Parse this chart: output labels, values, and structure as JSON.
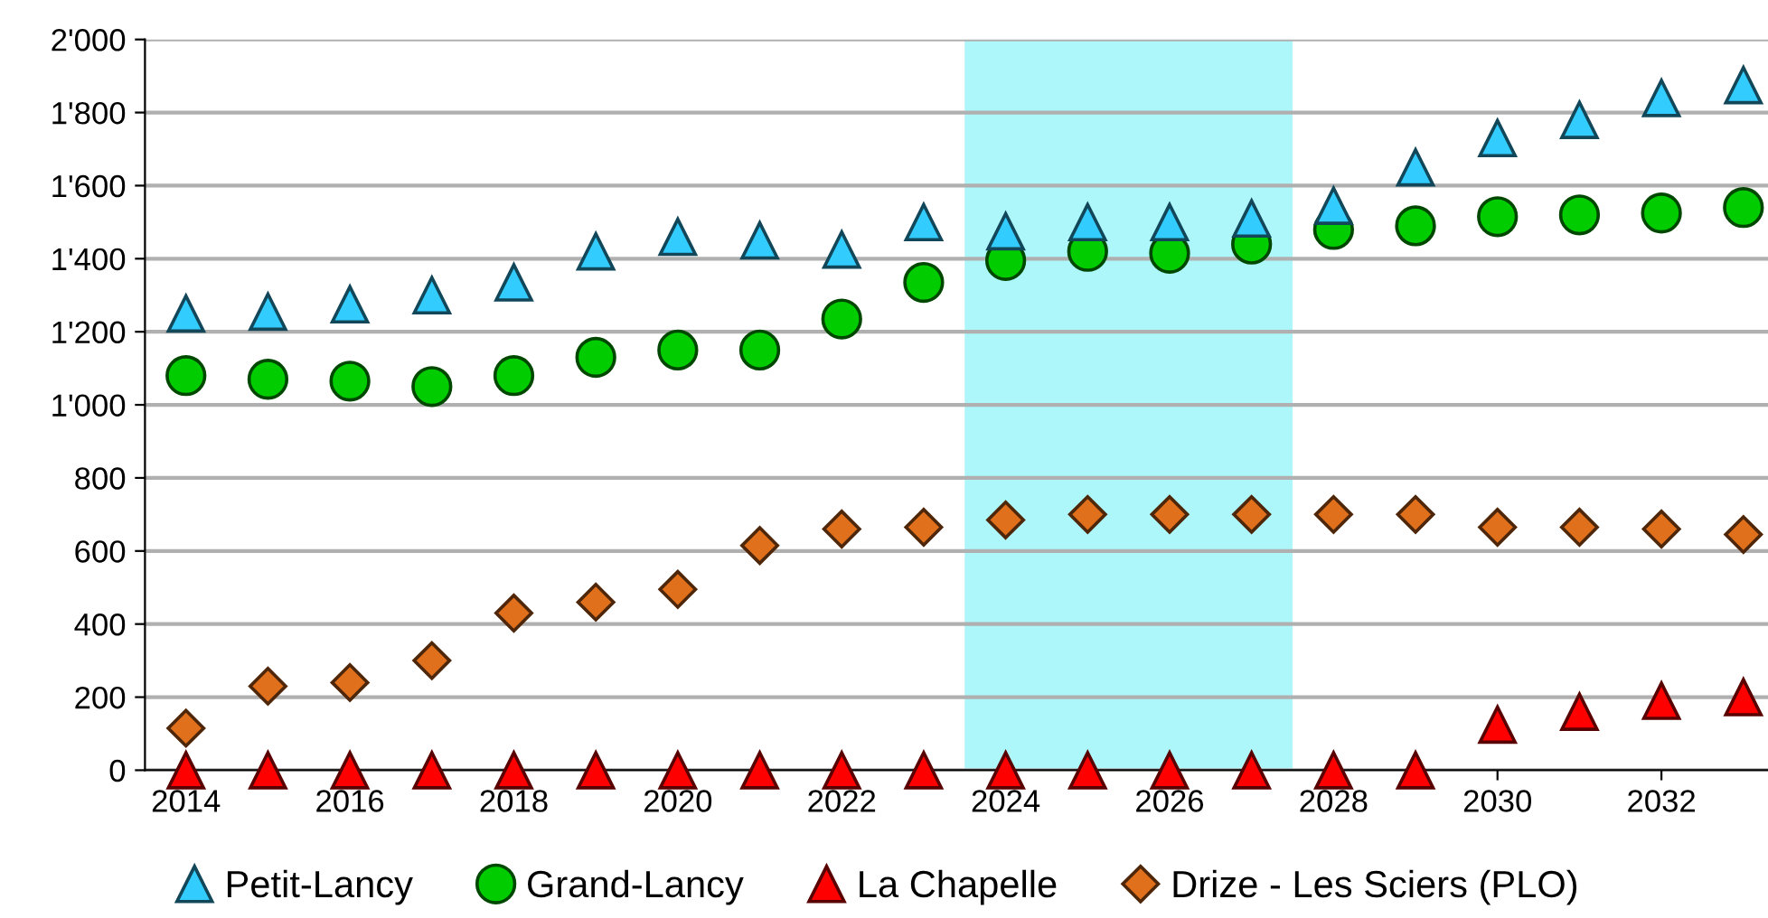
{
  "chart_data": {
    "type": "scatter",
    "x": [
      2014,
      2015,
      2016,
      2017,
      2018,
      2019,
      2020,
      2021,
      2022,
      2023,
      2024,
      2025,
      2026,
      2027,
      2028,
      2029,
      2030,
      2031,
      2032,
      2033
    ],
    "series": [
      {
        "name": "Petit-Lancy",
        "color": "#33ccff",
        "marker": "triangle",
        "values": [
          1250,
          1255,
          1275,
          1300,
          1335,
          1420,
          1460,
          1450,
          1425,
          1500,
          1475,
          1500,
          1500,
          1510,
          1545,
          1650,
          1730,
          1780,
          1840,
          1875
        ]
      },
      {
        "name": "Grand-Lancy",
        "color": "#00cc00",
        "marker": "circle",
        "values": [
          1080,
          1070,
          1065,
          1050,
          1080,
          1130,
          1150,
          1150,
          1235,
          1335,
          1395,
          1420,
          1415,
          1440,
          1480,
          1490,
          1515,
          1520,
          1525,
          1540
        ]
      },
      {
        "name": "La Chapelle",
        "color": "#ff0000",
        "marker": "triangle",
        "values": [
          0,
          0,
          0,
          0,
          0,
          0,
          0,
          0,
          0,
          0,
          0,
          0,
          0,
          0,
          0,
          0,
          125,
          160,
          190,
          200
        ]
      },
      {
        "name": "Drize - Les Sciers (PLO)",
        "color": "#e0701c",
        "marker": "diamond",
        "values": [
          115,
          230,
          240,
          300,
          430,
          460,
          495,
          615,
          660,
          665,
          685,
          700,
          700,
          700,
          700,
          700,
          665,
          665,
          660,
          645
        ]
      }
    ],
    "xlim": [
      2013.5,
      2033.3
    ],
    "xticks": [
      2014,
      2016,
      2018,
      2020,
      2022,
      2024,
      2026,
      2028,
      2030,
      2032
    ],
    "ylim": [
      0,
      2000
    ],
    "yticks": [
      0,
      200,
      400,
      600,
      800,
      {
        "value": 1000,
        "label": "1'000"
      },
      {
        "value": 1200,
        "label": "1'200"
      },
      {
        "value": 1400,
        "label": "1'400"
      },
      {
        "value": 1600,
        "label": "1'600"
      },
      {
        "value": 1800,
        "label": "1'800"
      },
      {
        "value": 2000,
        "label": "2'000"
      }
    ],
    "bands": [
      {
        "axis": "x",
        "from": 2023.5,
        "to": 2027.5,
        "color": "#adf6fa"
      }
    ],
    "grid": "y",
    "legend": "bottom"
  }
}
